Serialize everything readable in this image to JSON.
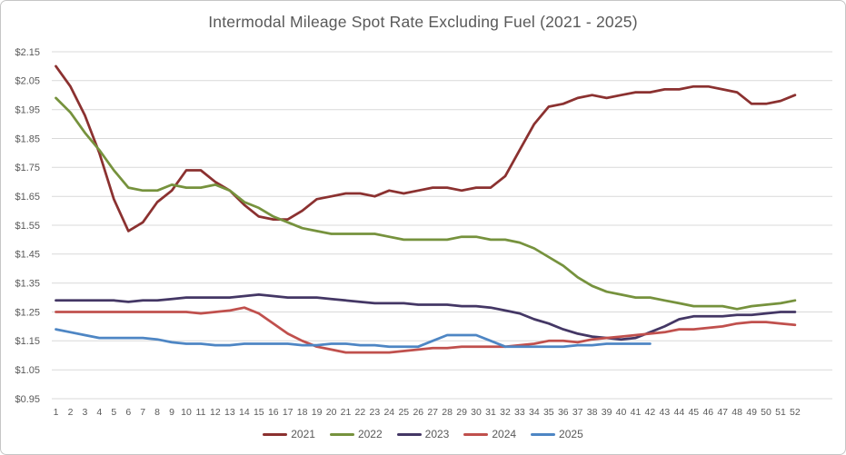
{
  "chart_data": {
    "type": "line",
    "title": "Intermodal Mileage Spot Rate Excluding Fuel (2021 - 2025)",
    "xlabel": "",
    "ylabel": "",
    "x_axis": "week number 1-52",
    "x_ticks": [
      1,
      2,
      3,
      4,
      5,
      6,
      7,
      8,
      9,
      10,
      11,
      12,
      13,
      14,
      15,
      16,
      17,
      18,
      19,
      20,
      21,
      22,
      23,
      24,
      25,
      26,
      27,
      28,
      29,
      30,
      31,
      32,
      33,
      34,
      35,
      36,
      37,
      38,
      39,
      40,
      41,
      42,
      43,
      44,
      45,
      46,
      47,
      48,
      49,
      50,
      51,
      52
    ],
    "y_ticks": [
      0.95,
      1.05,
      1.15,
      1.25,
      1.35,
      1.45,
      1.55,
      1.65,
      1.75,
      1.85,
      1.95,
      2.05,
      2.15
    ],
    "y_tick_labels": [
      "$0.95",
      "$1.05",
      "$1.15",
      "$1.25",
      "$1.35",
      "$1.45",
      "$1.55",
      "$1.65",
      "$1.75",
      "$1.85",
      "$1.95",
      "$2.05",
      "$2.15"
    ],
    "ylim": [
      0.95,
      2.15
    ],
    "grid": "horizontal",
    "legend_position": "bottom-center",
    "palette": {
      "grid": "#d9d9d9",
      "text": "#595959"
    },
    "series": [
      {
        "name": "2021",
        "color": "#8b3130",
        "values": [
          2.1,
          2.03,
          1.93,
          1.8,
          1.64,
          1.53,
          1.56,
          1.63,
          1.67,
          1.74,
          1.74,
          1.7,
          1.67,
          1.62,
          1.58,
          1.57,
          1.57,
          1.6,
          1.64,
          1.65,
          1.66,
          1.66,
          1.65,
          1.67,
          1.66,
          1.67,
          1.68,
          1.68,
          1.67,
          1.68,
          1.68,
          1.72,
          1.81,
          1.9,
          1.96,
          1.97,
          1.99,
          2.0,
          1.99,
          2.0,
          2.01,
          2.01,
          2.02,
          2.02,
          2.03,
          2.03,
          2.02,
          2.01,
          1.97,
          1.97,
          1.98,
          2.0
        ]
      },
      {
        "name": "2022",
        "color": "#76923d",
        "values": [
          1.99,
          1.94,
          1.87,
          1.81,
          1.74,
          1.68,
          1.67,
          1.67,
          1.69,
          1.68,
          1.68,
          1.69,
          1.67,
          1.63,
          1.61,
          1.58,
          1.56,
          1.54,
          1.53,
          1.52,
          1.52,
          1.52,
          1.52,
          1.51,
          1.5,
          1.5,
          1.5,
          1.5,
          1.51,
          1.51,
          1.5,
          1.5,
          1.49,
          1.47,
          1.44,
          1.41,
          1.37,
          1.34,
          1.32,
          1.31,
          1.3,
          1.3,
          1.29,
          1.28,
          1.27,
          1.27,
          1.27,
          1.26,
          1.27,
          1.275,
          1.28,
          1.29
        ]
      },
      {
        "name": "2023",
        "color": "#443765",
        "values": [
          1.29,
          1.29,
          1.29,
          1.29,
          1.29,
          1.285,
          1.29,
          1.29,
          1.295,
          1.3,
          1.3,
          1.3,
          1.3,
          1.305,
          1.31,
          1.305,
          1.3,
          1.3,
          1.3,
          1.295,
          1.29,
          1.285,
          1.28,
          1.28,
          1.28,
          1.275,
          1.275,
          1.275,
          1.27,
          1.27,
          1.265,
          1.255,
          1.245,
          1.225,
          1.21,
          1.19,
          1.175,
          1.165,
          1.16,
          1.155,
          1.16,
          1.18,
          1.2,
          1.225,
          1.235,
          1.235,
          1.235,
          1.24,
          1.24,
          1.245,
          1.25,
          1.25
        ]
      },
      {
        "name": "2024",
        "color": "#c0504d",
        "values": [
          1.25,
          1.25,
          1.25,
          1.25,
          1.25,
          1.25,
          1.25,
          1.25,
          1.25,
          1.25,
          1.245,
          1.25,
          1.255,
          1.265,
          1.245,
          1.21,
          1.175,
          1.15,
          1.13,
          1.12,
          1.11,
          1.11,
          1.11,
          1.11,
          1.115,
          1.12,
          1.125,
          1.125,
          1.13,
          1.13,
          1.13,
          1.13,
          1.135,
          1.14,
          1.15,
          1.15,
          1.145,
          1.155,
          1.16,
          1.165,
          1.17,
          1.175,
          1.18,
          1.19,
          1.19,
          1.195,
          1.2,
          1.21,
          1.215,
          1.215,
          1.21,
          1.205
        ]
      },
      {
        "name": "2025",
        "color": "#4e86c4",
        "values": [
          1.19,
          1.18,
          1.17,
          1.16,
          1.16,
          1.16,
          1.16,
          1.155,
          1.145,
          1.14,
          1.14,
          1.135,
          1.135,
          1.14,
          1.14,
          1.14,
          1.14,
          1.135,
          1.135,
          1.14,
          1.14,
          1.135,
          1.135,
          1.13,
          1.13,
          1.13,
          1.15,
          1.17,
          1.17,
          1.17,
          1.15,
          1.13,
          1.13,
          1.13,
          1.13,
          1.13,
          1.135,
          1.135,
          1.14,
          1.14,
          1.14,
          1.14
        ]
      }
    ]
  }
}
